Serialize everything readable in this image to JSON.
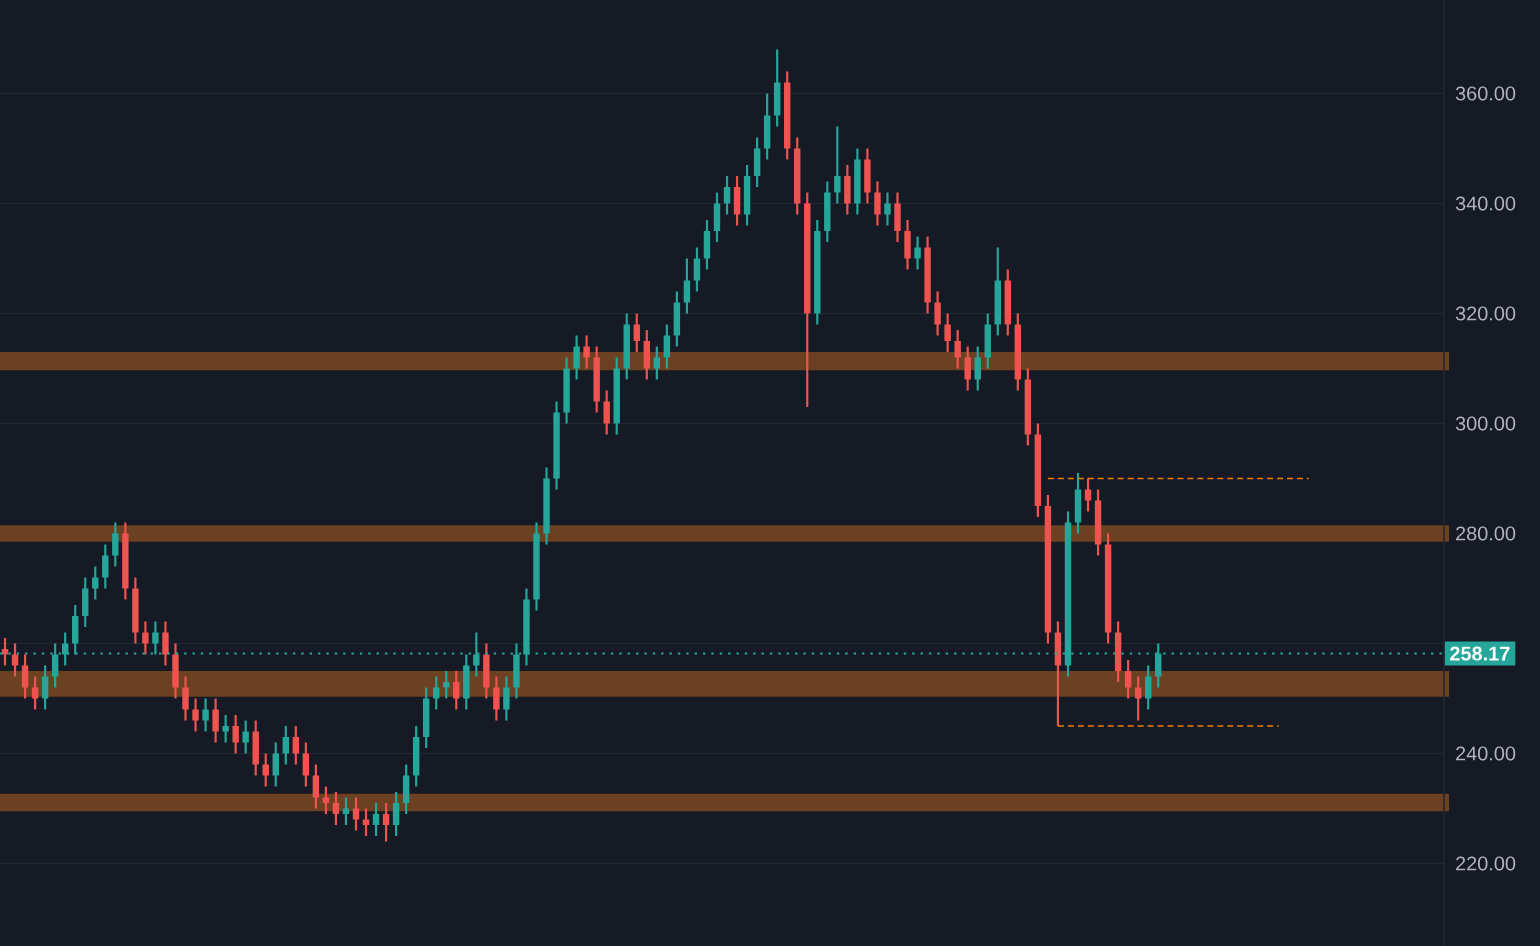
{
  "chart_data": {
    "type": "candlestick",
    "categories": [
      null,
      null,
      null,
      null,
      null,
      null,
      null,
      null,
      null,
      null,
      null,
      null,
      null,
      null,
      null,
      null,
      null,
      null,
      null,
      null,
      null,
      null,
      null,
      null,
      null,
      null,
      null,
      null,
      null,
      null,
      null,
      null,
      null,
      null,
      null,
      null,
      null,
      null,
      null,
      null,
      null,
      null,
      null,
      null,
      null,
      null,
      null,
      null,
      null,
      null,
      null,
      null,
      null,
      null,
      null,
      null,
      null,
      null,
      null,
      null,
      null,
      null,
      null,
      null,
      null,
      null,
      null,
      null,
      null,
      null,
      null,
      null,
      null,
      null,
      null,
      null,
      null,
      null,
      null,
      null,
      null,
      null,
      null,
      null,
      null,
      null,
      null,
      null,
      null,
      null,
      null,
      null,
      null,
      null,
      null,
      null,
      null,
      null,
      null,
      null,
      null,
      null,
      null,
      null,
      null,
      null,
      null,
      null,
      null,
      null,
      null,
      null,
      null,
      null,
      null,
      null,
      null,
      null,
      null,
      null,
      null,
      null,
      null,
      null,
      null,
      null,
      null,
      null,
      null,
      null,
      null,
      null,
      null,
      null,
      null,
      null,
      null,
      null,
      null,
      null,
      null,
      null,
      null,
      null
    ],
    "ohlc": [
      [
        259,
        261,
        256,
        258
      ],
      [
        258,
        260,
        254,
        256
      ],
      [
        256,
        258,
        250,
        252
      ],
      [
        252,
        254,
        248,
        250
      ],
      [
        250,
        256,
        248,
        254
      ],
      [
        254,
        260,
        252,
        258
      ],
      [
        258,
        262,
        256,
        260
      ],
      [
        260,
        267,
        258,
        265
      ],
      [
        265,
        272,
        263,
        270
      ],
      [
        270,
        274,
        268,
        272
      ],
      [
        272,
        278,
        270,
        276
      ],
      [
        276,
        282,
        274,
        280
      ],
      [
        280,
        282,
        268,
        270
      ],
      [
        270,
        272,
        260,
        262
      ],
      [
        262,
        264,
        258,
        260
      ],
      [
        260,
        264,
        258,
        262
      ],
      [
        262,
        264,
        256,
        258
      ],
      [
        258,
        260,
        250,
        252
      ],
      [
        252,
        254,
        246,
        248
      ],
      [
        248,
        250,
        244,
        246
      ],
      [
        246,
        250,
        244,
        248
      ],
      [
        248,
        250,
        242,
        244
      ],
      [
        244,
        247,
        242,
        245
      ],
      [
        245,
        247,
        240,
        242
      ],
      [
        242,
        246,
        240,
        244
      ],
      [
        244,
        246,
        236,
        238
      ],
      [
        238,
        240,
        234,
        236
      ],
      [
        236,
        242,
        234,
        240
      ],
      [
        240,
        245,
        238,
        243
      ],
      [
        243,
        245,
        238,
        240
      ],
      [
        240,
        242,
        234,
        236
      ],
      [
        236,
        238,
        230,
        232
      ],
      [
        232,
        234,
        229,
        231
      ],
      [
        231,
        233,
        227,
        229
      ],
      [
        229,
        232,
        227,
        230
      ],
      [
        230,
        232,
        226,
        228
      ],
      [
        228,
        230,
        225,
        227
      ],
      [
        227,
        231,
        225,
        229
      ],
      [
        229,
        231,
        224,
        227
      ],
      [
        227,
        233,
        225,
        231
      ],
      [
        231,
        238,
        229,
        236
      ],
      [
        236,
        245,
        234,
        243
      ],
      [
        243,
        252,
        241,
        250
      ],
      [
        250,
        254,
        248,
        252
      ],
      [
        252,
        255,
        250,
        253
      ],
      [
        253,
        255,
        248,
        250
      ],
      [
        250,
        258,
        248,
        256
      ],
      [
        256,
        262,
        254,
        258
      ],
      [
        258,
        260,
        250,
        252
      ],
      [
        252,
        254,
        246,
        248
      ],
      [
        248,
        254,
        246,
        252
      ],
      [
        252,
        260,
        250,
        258
      ],
      [
        258,
        270,
        256,
        268
      ],
      [
        268,
        282,
        266,
        280
      ],
      [
        280,
        292,
        278,
        290
      ],
      [
        290,
        304,
        288,
        302
      ],
      [
        302,
        312,
        300,
        310
      ],
      [
        310,
        316,
        308,
        314
      ],
      [
        314,
        316,
        310,
        312
      ],
      [
        312,
        314,
        302,
        304
      ],
      [
        304,
        306,
        298,
        300
      ],
      [
        300,
        312,
        298,
        310
      ],
      [
        310,
        320,
        308,
        318
      ],
      [
        318,
        320,
        313,
        315
      ],
      [
        315,
        317,
        308,
        310
      ],
      [
        310,
        314,
        308,
        312
      ],
      [
        312,
        318,
        310,
        316
      ],
      [
        316,
        324,
        314,
        322
      ],
      [
        322,
        330,
        320,
        326
      ],
      [
        326,
        332,
        324,
        330
      ],
      [
        330,
        337,
        328,
        335
      ],
      [
        335,
        342,
        333,
        340
      ],
      [
        340,
        345,
        338,
        343
      ],
      [
        343,
        345,
        336,
        338
      ],
      [
        338,
        347,
        336,
        345
      ],
      [
        345,
        352,
        343,
        350
      ],
      [
        350,
        360,
        348,
        356
      ],
      [
        356,
        368,
        354,
        362
      ],
      [
        362,
        364,
        348,
        350
      ],
      [
        350,
        352,
        338,
        340
      ],
      [
        340,
        342,
        303,
        320
      ],
      [
        320,
        337,
        318,
        335
      ],
      [
        335,
        344,
        333,
        342
      ],
      [
        342,
        354,
        340,
        345
      ],
      [
        345,
        347,
        338,
        340
      ],
      [
        340,
        350,
        338,
        348
      ],
      [
        348,
        350,
        340,
        342
      ],
      [
        342,
        344,
        336,
        338
      ],
      [
        338,
        342,
        336,
        340
      ],
      [
        340,
        342,
        333,
        335
      ],
      [
        335,
        337,
        328,
        330
      ],
      [
        330,
        334,
        328,
        332
      ],
      [
        332,
        334,
        320,
        322
      ],
      [
        322,
        324,
        316,
        318
      ],
      [
        318,
        320,
        313,
        315
      ],
      [
        315,
        317,
        310,
        312
      ],
      [
        312,
        314,
        306,
        308
      ],
      [
        308,
        314,
        306,
        312
      ],
      [
        312,
        320,
        310,
        318
      ],
      [
        318,
        332,
        316,
        326
      ],
      [
        326,
        328,
        316,
        318
      ],
      [
        318,
        320,
        306,
        308
      ],
      [
        308,
        310,
        296,
        298
      ],
      [
        298,
        300,
        283,
        285
      ],
      [
        285,
        287,
        260,
        262
      ],
      [
        262,
        264,
        245,
        256
      ],
      [
        256,
        284,
        254,
        282
      ],
      [
        282,
        291,
        280,
        288
      ],
      [
        288,
        290,
        284,
        286
      ],
      [
        286,
        288,
        276,
        278
      ],
      [
        278,
        280,
        260,
        262
      ],
      [
        262,
        264,
        253,
        255
      ],
      [
        255,
        257,
        250,
        252
      ],
      [
        252,
        254,
        246,
        250
      ],
      [
        250,
        256,
        248,
        254
      ],
      [
        254,
        260,
        252,
        258.17
      ],
      null,
      null,
      null,
      null,
      null,
      null,
      null,
      null,
      null,
      null,
      null,
      null,
      null,
      null,
      null,
      null,
      null,
      null,
      null,
      null,
      null,
      null,
      null,
      null,
      null,
      null,
      null,
      null
    ],
    "series": [
      {
        "type": "line",
        "color": "#f57c00",
        "line_style": "dashed",
        "values": [
          null,
          null,
          null,
          null,
          null,
          null,
          null,
          null,
          null,
          null,
          null,
          null,
          null,
          null,
          null,
          null,
          null,
          null,
          null,
          null,
          null,
          null,
          null,
          null,
          null,
          null,
          null,
          null,
          null,
          null,
          null,
          null,
          null,
          null,
          null,
          null,
          null,
          null,
          null,
          null,
          null,
          null,
          null,
          null,
          null,
          null,
          null,
          null,
          null,
          null,
          null,
          null,
          null,
          null,
          null,
          null,
          null,
          null,
          null,
          null,
          null,
          null,
          null,
          null,
          null,
          null,
          null,
          null,
          null,
          null,
          null,
          null,
          null,
          null,
          null,
          null,
          null,
          null,
          null,
          null,
          null,
          null,
          null,
          null,
          null,
          null,
          null,
          null,
          null,
          null,
          null,
          null,
          null,
          null,
          null,
          null,
          null,
          null,
          null,
          null,
          null,
          null,
          null,
          null,
          290,
          290,
          290,
          290,
          290,
          290,
          290,
          290,
          290,
          290,
          290,
          290,
          290,
          290,
          290,
          290,
          290,
          290,
          290,
          290,
          290,
          290,
          290,
          290,
          290,
          290,
          290,
          null,
          null,
          null,
          null,
          null,
          null,
          null,
          null,
          null,
          null,
          null,
          null,
          null
        ]
      },
      {
        "type": "line",
        "color": "#f57c00",
        "line_style": "dashed",
        "values": [
          null,
          null,
          null,
          null,
          null,
          null,
          null,
          null,
          null,
          null,
          null,
          null,
          null,
          null,
          null,
          null,
          null,
          null,
          null,
          null,
          null,
          null,
          null,
          null,
          null,
          null,
          null,
          null,
          null,
          null,
          null,
          null,
          null,
          null,
          null,
          null,
          null,
          null,
          null,
          null,
          null,
          null,
          null,
          null,
          null,
          null,
          null,
          null,
          null,
          null,
          null,
          null,
          null,
          null,
          null,
          null,
          null,
          null,
          null,
          null,
          null,
          null,
          null,
          null,
          null,
          null,
          null,
          null,
          null,
          null,
          null,
          null,
          null,
          null,
          null,
          null,
          null,
          null,
          null,
          null,
          null,
          null,
          null,
          null,
          null,
          null,
          null,
          null,
          null,
          null,
          null,
          null,
          null,
          null,
          null,
          null,
          null,
          null,
          null,
          null,
          null,
          null,
          null,
          null,
          null,
          245,
          245,
          245,
          245,
          245,
          245,
          245,
          245,
          245,
          245,
          245,
          245,
          245,
          245,
          245,
          245,
          245,
          245,
          245,
          245,
          245,
          245,
          245,
          null,
          null,
          null,
          null,
          null,
          null,
          null,
          null,
          null,
          null,
          null,
          null,
          null,
          null,
          null,
          null
        ]
      }
    ],
    "ylim": [
      205,
      377
    ],
    "yticks": [
      {
        "value": 220,
        "label": "220.00"
      },
      {
        "value": 240,
        "label": "240.00"
      },
      {
        "value": 260,
        "label": null
      },
      {
        "value": 280,
        "label": "280.00"
      },
      {
        "value": 300,
        "label": "300.00"
      },
      {
        "value": 320,
        "label": "320.00"
      },
      {
        "value": 340,
        "label": "340.00"
      },
      {
        "value": 360,
        "label": "360.00"
      }
    ],
    "grid": "y",
    "bands": [
      {
        "axis": "y",
        "from": 309.7,
        "to": 313,
        "color": "#6b4122"
      },
      {
        "axis": "y",
        "from": 278.5,
        "to": 281.5,
        "color": "#6b4122"
      },
      {
        "axis": "y",
        "from": 250.3,
        "to": 255,
        "color": "#6b4122"
      },
      {
        "axis": "y",
        "from": 229.5,
        "to": 232.7,
        "color": "#6b4122"
      }
    ],
    "ref_lines": [
      {
        "axis": "y",
        "value": 258.17,
        "label": "258.17",
        "color": "#26a69a",
        "line_style": "dotted"
      }
    ]
  }
}
